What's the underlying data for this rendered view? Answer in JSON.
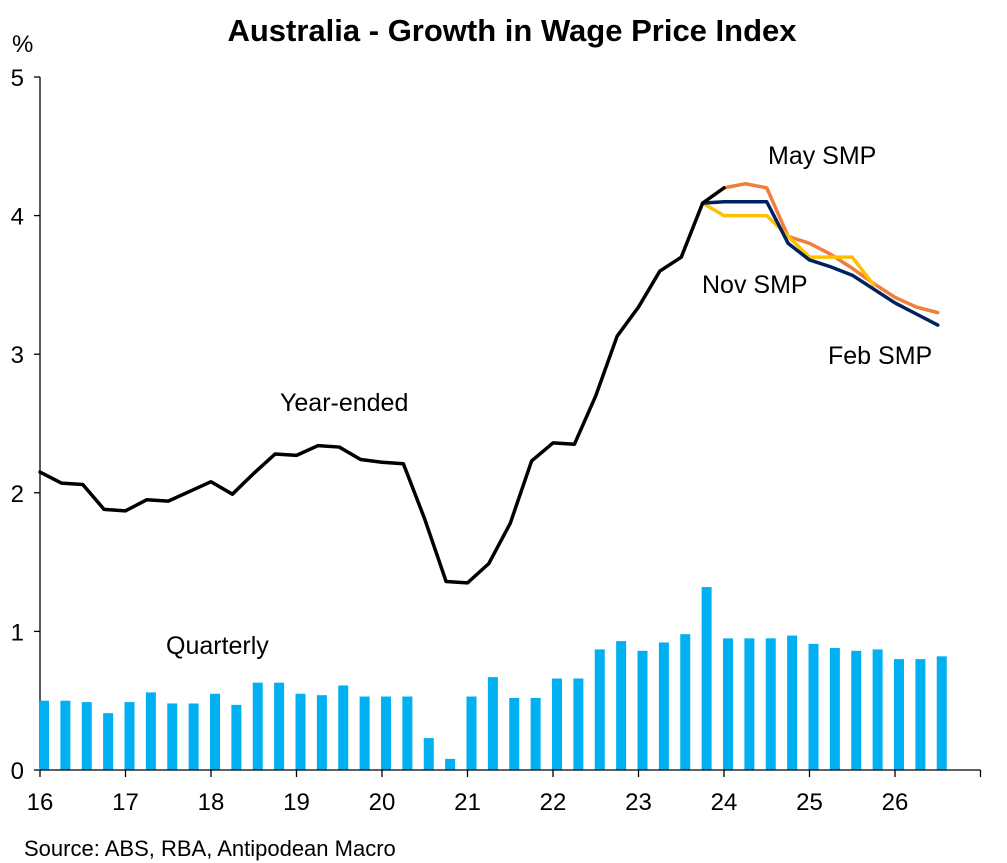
{
  "chart_data": {
    "type": "line+bar",
    "title": "Australia - Growth in Wage Price Index",
    "ylabel": "%",
    "ylim": [
      0,
      5
    ],
    "yticks": [
      "0",
      "1",
      "2",
      "3",
      "4",
      "5"
    ],
    "xlim": [
      2016,
      2027
    ],
    "xticks": [
      "16",
      "17",
      "18",
      "19",
      "20",
      "21",
      "22",
      "23",
      "24",
      "25",
      "26"
    ],
    "source": "Source: ABS, RBA, Antipodean Macro",
    "colors": {
      "year_ended": "#000000",
      "quarterly": "#00B0F0",
      "may_smp": "#F07F3C",
      "nov_smp": "#FFC000",
      "feb_smp": "#002060"
    },
    "quarterly": {
      "name": "Quarterly",
      "x": [
        2016.0,
        2016.25,
        2016.5,
        2016.75,
        2017.0,
        2017.25,
        2017.5,
        2017.75,
        2018.0,
        2018.25,
        2018.5,
        2018.75,
        2019.0,
        2019.25,
        2019.5,
        2019.75,
        2020.0,
        2020.25,
        2020.5,
        2020.75,
        2021.0,
        2021.25,
        2021.5,
        2021.75,
        2022.0,
        2022.25,
        2022.5,
        2022.75,
        2023.0,
        2023.25,
        2023.5,
        2023.75,
        2024.0,
        2024.25,
        2024.5,
        2024.75,
        2025.0,
        2025.25,
        2025.5,
        2025.75,
        2026.0,
        2026.25,
        2026.5
      ],
      "values": [
        0.5,
        0.5,
        0.49,
        0.41,
        0.49,
        0.56,
        0.48,
        0.48,
        0.55,
        0.47,
        0.63,
        0.63,
        0.55,
        0.54,
        0.61,
        0.53,
        0.53,
        0.53,
        0.23,
        0.08,
        0.53,
        0.67,
        0.52,
        0.52,
        0.66,
        0.66,
        0.87,
        0.93,
        0.86,
        0.92,
        0.98,
        1.32,
        0.95,
        0.95,
        0.95,
        0.97,
        0.91,
        0.88,
        0.86,
        0.87,
        0.8,
        0.8,
        0.82
      ]
    },
    "year_ended": {
      "name": "Year-ended",
      "x": [
        2016.0,
        2016.25,
        2016.5,
        2016.75,
        2017.0,
        2017.25,
        2017.5,
        2017.75,
        2018.0,
        2018.25,
        2018.5,
        2018.75,
        2019.0,
        2019.25,
        2019.5,
        2019.75,
        2020.0,
        2020.25,
        2020.5,
        2020.75,
        2021.0,
        2021.25,
        2021.5,
        2021.75,
        2022.0,
        2022.25,
        2022.5,
        2022.75,
        2023.0,
        2023.25,
        2023.5,
        2023.75,
        2024.0
      ],
      "values": [
        2.15,
        2.07,
        2.06,
        1.88,
        1.87,
        1.95,
        1.94,
        2.01,
        2.08,
        1.99,
        2.14,
        2.28,
        2.27,
        2.34,
        2.33,
        2.24,
        2.22,
        2.21,
        1.81,
        1.36,
        1.35,
        1.49,
        1.78,
        2.23,
        2.36,
        2.35,
        2.7,
        3.13,
        3.34,
        3.6,
        3.7,
        4.09,
        4.2
      ]
    },
    "may_smp": {
      "name": "May SMP",
      "x": [
        2023.75,
        2024.0,
        2024.25,
        2024.5,
        2024.75,
        2025.0,
        2025.25,
        2025.5,
        2025.75,
        2026.0,
        2026.25,
        2026.5
      ],
      "values": [
        4.09,
        4.2,
        4.23,
        4.2,
        3.85,
        3.8,
        3.72,
        3.62,
        3.51,
        3.41,
        3.34,
        3.3
      ]
    },
    "nov_smp": {
      "name": "Nov SMP",
      "x": [
        2023.75,
        2024.0,
        2024.25,
        2024.5,
        2024.75,
        2025.0,
        2025.25,
        2025.5,
        2025.75
      ],
      "values": [
        4.09,
        4.0,
        4.0,
        4.0,
        3.85,
        3.7,
        3.7,
        3.7,
        3.5
      ]
    },
    "feb_smp": {
      "name": "Feb SMP",
      "x": [
        2023.75,
        2024.0,
        2024.25,
        2024.5,
        2024.75,
        2025.0,
        2025.25,
        2025.5,
        2025.75,
        2026.0,
        2026.25,
        2026.5
      ],
      "values": [
        4.09,
        4.1,
        4.1,
        4.1,
        3.8,
        3.68,
        3.63,
        3.57,
        3.47,
        3.37,
        3.29,
        3.21
      ]
    }
  }
}
